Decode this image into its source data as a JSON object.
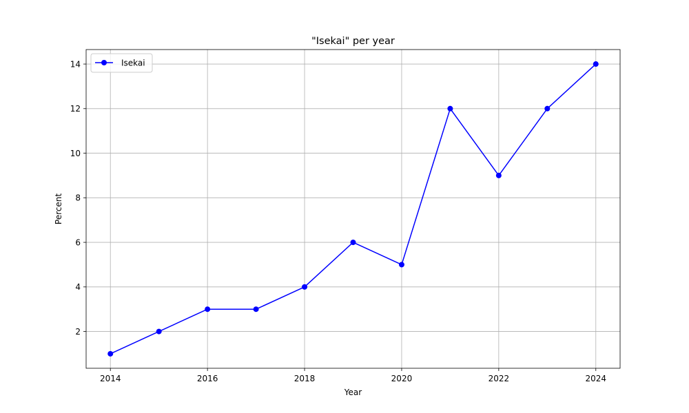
{
  "chart_data": {
    "type": "line",
    "title": "\"Isekai\" per year",
    "xlabel": "Year",
    "ylabel": "Percent",
    "x": [
      2014,
      2015,
      2016,
      2017,
      2018,
      2019,
      2020,
      2021,
      2022,
      2023,
      2024
    ],
    "series": [
      {
        "name": "Isekai",
        "color": "#0000ff",
        "marker": "circle",
        "values": [
          1,
          2,
          3,
          3,
          4,
          6,
          5,
          12,
          9,
          12,
          14
        ]
      }
    ],
    "xlim": [
      2013.5,
      2024.5
    ],
    "ylim": [
      0.35,
      14.65
    ],
    "xticks": [
      2014,
      2016,
      2018,
      2020,
      2022,
      2024
    ],
    "yticks": [
      2,
      4,
      6,
      8,
      10,
      12,
      14
    ],
    "grid": true,
    "legend_position": "top-left"
  }
}
